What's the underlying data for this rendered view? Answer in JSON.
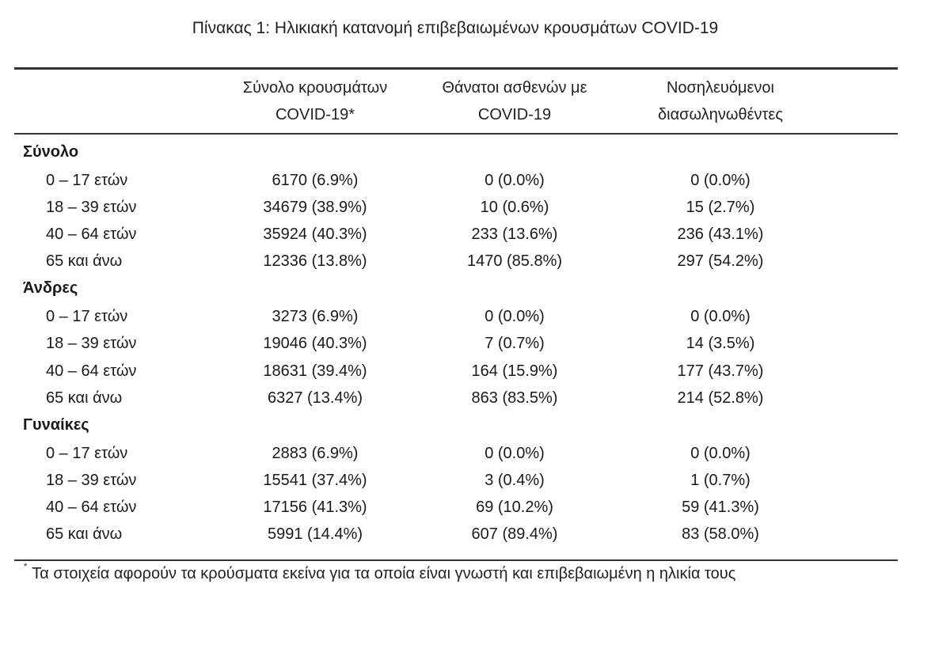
{
  "caption": "Πίνακας 1: Ηλικιακή κατανομή επιβεβαιωμένων κρουσμάτων COVID-19",
  "headers": {
    "col1_line1": "Σύνολο κρουσμάτων",
    "col1_line2": "COVID-19*",
    "col2_line1": "Θάνατοι ασθενών με",
    "col2_line2": "COVID-19",
    "col3_line1": "Νοσηλευόμενοι",
    "col3_line2": "διασωληνωθέντες"
  },
  "groups": [
    {
      "label": "Σύνολο",
      "rows": [
        {
          "label": "0 – 17 ετών",
          "cases": "6170 (6.9%)",
          "deaths": "0 (0.0%)",
          "intubated": "0 (0.0%)"
        },
        {
          "label": "18 – 39 ετών",
          "cases": "34679 (38.9%)",
          "deaths": "10 (0.6%)",
          "intubated": "15 (2.7%)"
        },
        {
          "label": "40 – 64 ετών",
          "cases": "35924 (40.3%)",
          "deaths": "233 (13.6%)",
          "intubated": "236 (43.1%)"
        },
        {
          "label": "65 και άνω",
          "cases": "12336 (13.8%)",
          "deaths": "1470 (85.8%)",
          "intubated": "297 (54.2%)"
        }
      ]
    },
    {
      "label": "Άνδρες",
      "rows": [
        {
          "label": "0 – 17 ετών",
          "cases": "3273 (6.9%)",
          "deaths": "0 (0.0%)",
          "intubated": "0 (0.0%)"
        },
        {
          "label": "18 – 39 ετών",
          "cases": "19046 (40.3%)",
          "deaths": "7 (0.7%)",
          "intubated": "14 (3.5%)"
        },
        {
          "label": "40 – 64 ετών",
          "cases": "18631 (39.4%)",
          "deaths": "164 (15.9%)",
          "intubated": "177 (43.7%)"
        },
        {
          "label": "65 και άνω",
          "cases": "6327 (13.4%)",
          "deaths": "863 (83.5%)",
          "intubated": "214 (52.8%)"
        }
      ]
    },
    {
      "label": "Γυναίκες",
      "rows": [
        {
          "label": "0 – 17 ετών",
          "cases": "2883 (6.9%)",
          "deaths": "0 (0.0%)",
          "intubated": "0 (0.0%)"
        },
        {
          "label": "18 – 39 ετών",
          "cases": "15541 (37.4%)",
          "deaths": "3 (0.4%)",
          "intubated": "1 (0.7%)"
        },
        {
          "label": "40 – 64 ετών",
          "cases": "17156 (41.3%)",
          "deaths": "69 (10.2%)",
          "intubated": "59 (41.3%)"
        },
        {
          "label": "65 και άνω",
          "cases": "5991 (14.4%)",
          "deaths": "607 (89.4%)",
          "intubated": "83 (58.0%)"
        }
      ]
    }
  ],
  "footnote": {
    "marker": "*",
    "text": "Τα στοιχεία αφορούν τα κρούσματα εκείνα για τα οποία είναι γνωστή και επιβεβαιωμένη η ηλικία τους"
  }
}
